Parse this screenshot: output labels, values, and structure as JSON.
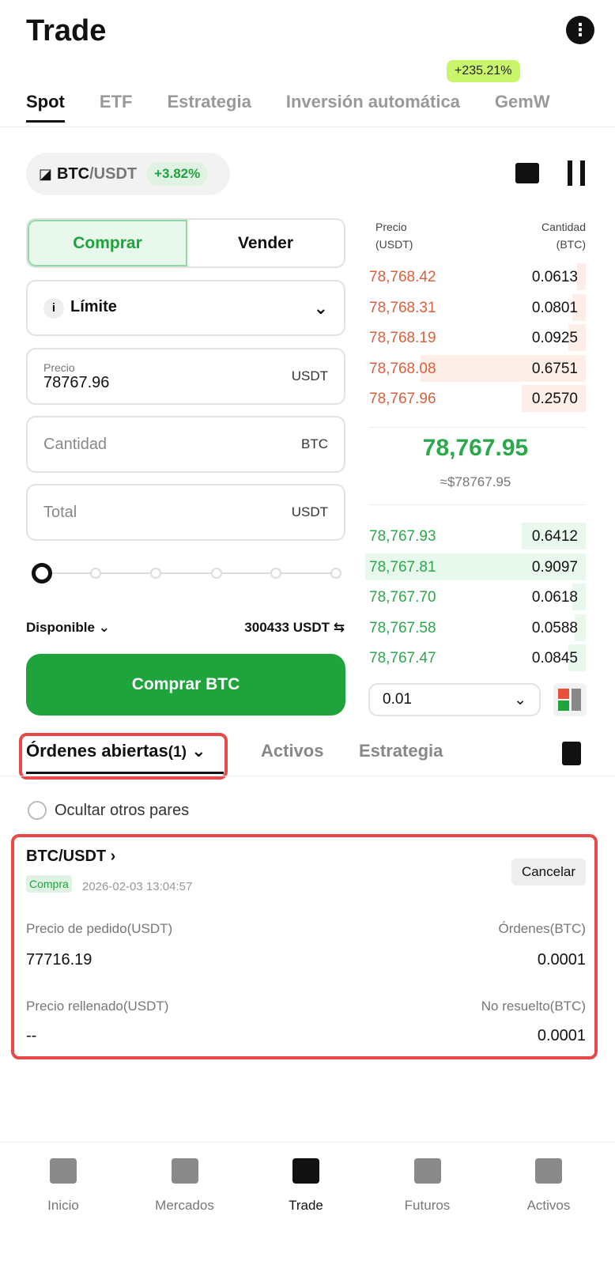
{
  "header": {
    "title": "Trade"
  },
  "tabs": [
    {
      "label": "Spot",
      "active": true
    },
    {
      "label": "ETF"
    },
    {
      "label": "Estrategia"
    },
    {
      "label": "Inversión automática"
    },
    {
      "label": "GemW"
    }
  ],
  "promo_badge": "+235.21%",
  "pair": {
    "base": "BTC",
    "quote": "/USDT",
    "change": "+3.82%"
  },
  "form": {
    "buy": "Comprar",
    "sell": "Vender",
    "order_type": "Límite",
    "price_label": "Precio",
    "price_value": "78767.96",
    "price_unit": "USDT",
    "qty_placeholder": "Cantidad",
    "qty_unit": "BTC",
    "total_placeholder": "Total",
    "total_unit": "USDT",
    "slider_percent": 0,
    "available_label": "Disponible",
    "available_value": "300433 USDT",
    "submit": "Comprar BTC"
  },
  "orderbook": {
    "price_header": "Precio",
    "price_unit": "(USDT)",
    "qty_header": "Cantidad",
    "qty_unit": "(BTC)",
    "asks": [
      {
        "price": "78,768.42",
        "qty": "0.0613",
        "depth": 0.04
      },
      {
        "price": "78,768.31",
        "qty": "0.0801",
        "depth": 0.06
      },
      {
        "price": "78,768.19",
        "qty": "0.0925",
        "depth": 0.08
      },
      {
        "price": "78,768.08",
        "qty": "0.6751",
        "depth": 0.75
      },
      {
        "price": "78,767.96",
        "qty": "0.2570",
        "depth": 0.29
      }
    ],
    "last_price": "78,767.95",
    "last_price_fiat": "≈$78767.95",
    "bids": [
      {
        "price": "78,767.93",
        "qty": "0.6412",
        "depth": 0.29
      },
      {
        "price": "78,767.81",
        "qty": "0.9097",
        "depth": 1.0
      },
      {
        "price": "78,767.70",
        "qty": "0.0618",
        "depth": 0.06
      },
      {
        "price": "78,767.58",
        "qty": "0.0588",
        "depth": 0.05
      },
      {
        "price": "78,767.47",
        "qty": "0.0845",
        "depth": 0.08
      }
    ],
    "precision": "0.01",
    "colors": {
      "ask": "#d9603c",
      "bid": "#2aa84a"
    }
  },
  "orders": {
    "tabs": [
      "Órdenes abiertas",
      "(1)",
      "Activos",
      "Estrategia"
    ],
    "hide_others": "Ocultar otros pares",
    "items": [
      {
        "pair": "BTC/USDT",
        "side": "Compra",
        "time": "2026-02-03 13:04:57",
        "cancel": "Cancelar",
        "order_price_label": "Precio de pedido(USDT)",
        "order_price": "77716.19",
        "orders_label": "Órdenes(BTC)",
        "orders_value": "0.0001",
        "filled_label": "Precio rellenado(USDT)",
        "filled_value": "--",
        "unfilled_label": "No resuelto(BTC)",
        "unfilled_value": "0.0001"
      }
    ]
  },
  "nav": [
    {
      "label": "Inicio",
      "icon": "home-icon"
    },
    {
      "label": "Mercados",
      "icon": "bar-chart-icon"
    },
    {
      "label": "Trade",
      "icon": "candlestick-icon",
      "active": true
    },
    {
      "label": "Futuros",
      "icon": "futures-icon"
    },
    {
      "label": "Activos",
      "icon": "wallet-icon"
    }
  ]
}
